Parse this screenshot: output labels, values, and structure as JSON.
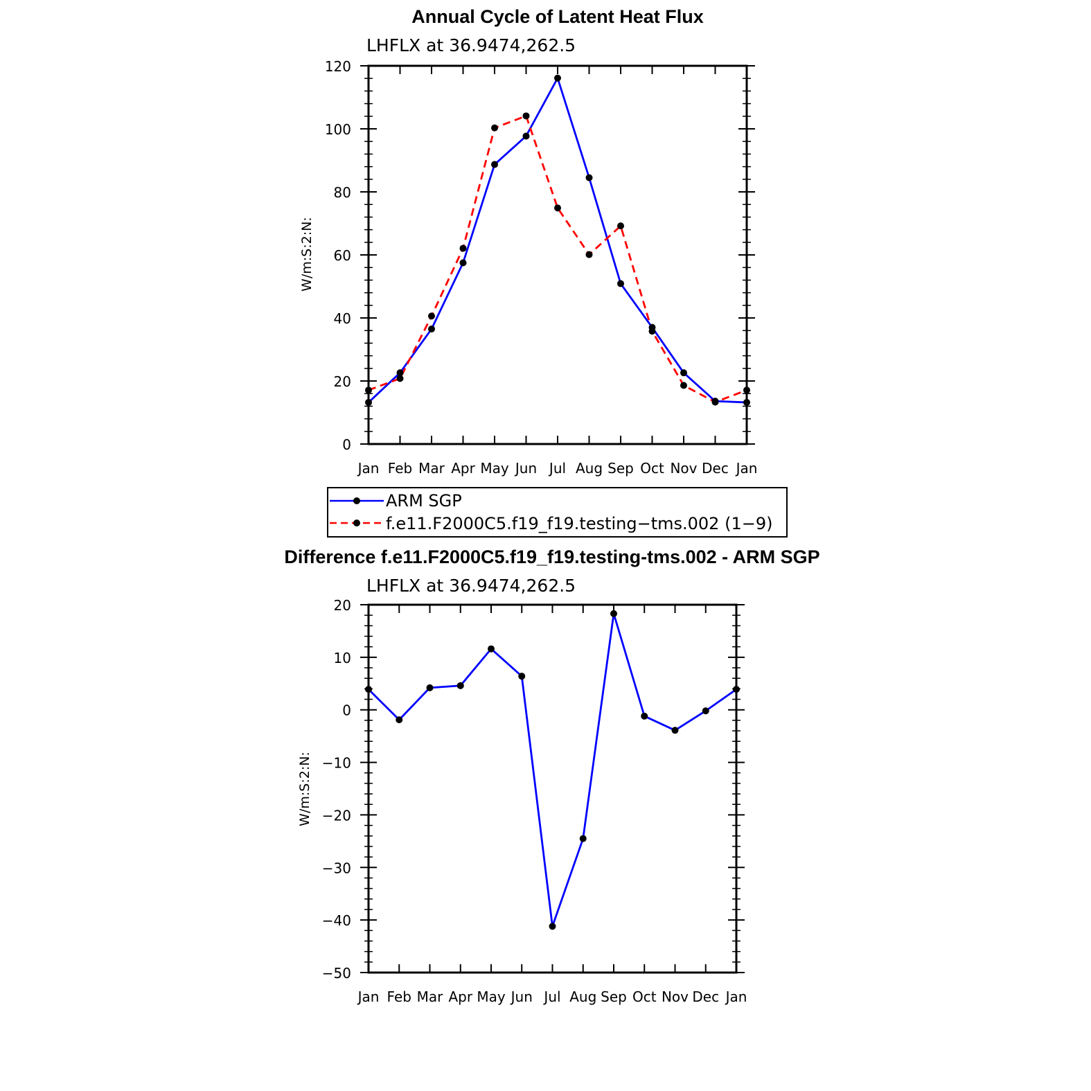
{
  "chart_data": [
    {
      "type": "line",
      "title": "Annual Cycle of Latent Heat Flux",
      "subtitle": "LHFLX at 36.9474,262.5",
      "xlabel": "",
      "ylabel": "W/m:S:2:N:",
      "categories": [
        "Jan",
        "Feb",
        "Mar",
        "Apr",
        "May",
        "Jun",
        "Jul",
        "Aug",
        "Sep",
        "Oct",
        "Nov",
        "Dec",
        "Jan"
      ],
      "ylim": [
        0,
        120
      ],
      "yticks": [
        "0",
        "20",
        "40",
        "60",
        "80",
        "100",
        "120"
      ],
      "series": [
        {
          "name": "ARM SGP",
          "color": "#0000ff",
          "style": "solid",
          "values": [
            13.2,
            22.6,
            36.5,
            57.5,
            88.7,
            97.7,
            116.1,
            84.5,
            50.9,
            37.0,
            22.6,
            13.6,
            13.2
          ]
        },
        {
          "name": "f.e11.F2000C5.f19_f19.testing−tms.002 (1−9)",
          "color": "#ff0000",
          "style": "dashed",
          "values": [
            17.1,
            20.8,
            40.6,
            62.1,
            100.3,
            104.1,
            74.9,
            60.1,
            69.2,
            35.8,
            18.6,
            13.3,
            17.1
          ]
        }
      ],
      "legend": "below"
    },
    {
      "type": "line",
      "title": "Difference f.e11.F2000C5.f19_f19.testing-tms.002 - ARM SGP",
      "subtitle": "LHFLX at 36.9474,262.5",
      "xlabel": "",
      "ylabel": "W/m:S:2:N:",
      "categories": [
        "Jan",
        "Feb",
        "Mar",
        "Apr",
        "May",
        "Jun",
        "Jul",
        "Aug",
        "Sep",
        "Oct",
        "Nov",
        "Dec",
        "Jan"
      ],
      "ylim": [
        -50,
        20
      ],
      "yticks": [
        "−50",
        "−40",
        "−30",
        "−20",
        "−10",
        "0",
        "10",
        "20"
      ],
      "series": [
        {
          "name": "Difference",
          "color": "#0000ff",
          "style": "solid",
          "values": [
            3.9,
            -1.9,
            4.2,
            4.6,
            11.6,
            6.4,
            -41.2,
            -24.5,
            18.3,
            -1.2,
            -3.9,
            -0.2,
            3.9
          ]
        }
      ]
    }
  ]
}
